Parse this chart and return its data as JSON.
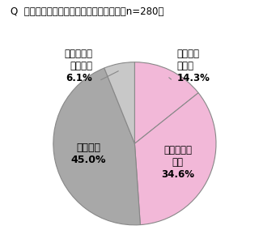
{
  "title": "Q  転職したいと思いますか。（単一回答　n=280）",
  "slices": [
    {
      "label_line1": "常に思っ",
      "label_line2": "ている",
      "label_pct": "14.3%",
      "value": 14.3
    },
    {
      "label_line1": "思うときも",
      "label_line2": "ある",
      "label_pct": "34.6%",
      "value": 34.6
    },
    {
      "label_line1": "思わない",
      "label_line2": "",
      "label_pct": "45.0%",
      "value": 45.0
    },
    {
      "label_line1": "どちらとも",
      "label_line2": "いえない",
      "label_pct": "6.1%",
      "value": 6.1
    }
  ],
  "slice_colors": [
    "#f2b8d8",
    "#f2b8d8",
    "#a8a8a8",
    "#c8c8c8"
  ],
  "edge_color": "#888888",
  "startangle": 90,
  "background_color": "#ffffff",
  "title_fontsize": 8.5,
  "label_fontsize": 8.5,
  "inside_label_fontsize": 9
}
